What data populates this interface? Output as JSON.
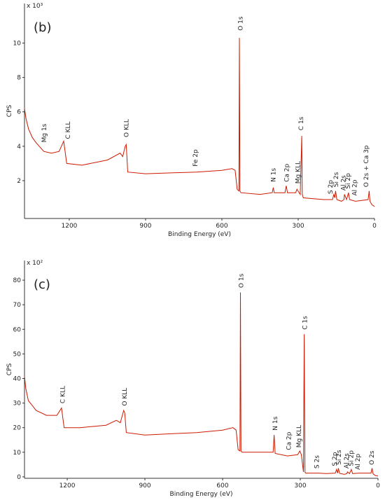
{
  "chart_data": [
    {
      "type": "line",
      "panel_label": "(b)",
      "y_scale_label": "x 10³",
      "xlabel": "Binding Energy (eV)",
      "ylabel": "CPS",
      "color": "#cc1a00",
      "xlim": [
        1376,
        0
      ],
      "xticks": [
        1200,
        900,
        600,
        300,
        0
      ],
      "ylim": [
        -0.2,
        12.3
      ],
      "yticks": [
        2,
        4,
        6,
        8,
        10
      ],
      "x": [
        1376,
        1370,
        1360,
        1345,
        1330,
        1300,
        1270,
        1240,
        1228,
        1222,
        1210,
        1150,
        1050,
        1000,
        990,
        980,
        976,
        970,
        900,
        700,
        600,
        560,
        548,
        540,
        533,
        531,
        529,
        525,
        450,
        402,
        398,
        394,
        352,
        347,
        342,
        310,
        305,
        292,
        286,
        284,
        280,
        200,
        165,
        160,
        156,
        153,
        148,
        130,
        120,
        118,
        110,
        102,
        98,
        75,
        25,
        21,
        18,
        10,
        0
      ],
      "values": [
        6.2,
        5.6,
        5.0,
        4.5,
        4.2,
        3.7,
        3.6,
        3.7,
        4.1,
        4.3,
        3.0,
        2.9,
        3.2,
        3.6,
        3.4,
        4.0,
        4.1,
        2.5,
        2.4,
        2.5,
        2.6,
        2.7,
        2.6,
        1.5,
        1.4,
        10.3,
        1.4,
        1.3,
        1.2,
        1.3,
        1.6,
        1.3,
        1.3,
        1.7,
        1.3,
        1.3,
        1.5,
        1.2,
        4.6,
        1.2,
        1.0,
        0.9,
        0.9,
        1.2,
        1.0,
        1.4,
        0.9,
        0.8,
        0.9,
        1.2,
        0.9,
        1.3,
        0.9,
        0.8,
        0.9,
        1.4,
        0.8,
        0.6,
        0.5
      ],
      "annotations": [
        {
          "text": "Mg 1s",
          "x": 1299,
          "y": 4.1
        },
        {
          "text": "C KLL",
          "x": 1205,
          "y": 4.3
        },
        {
          "text": "O KLL",
          "x": 975,
          "y": 4.4
        },
        {
          "text": "Fe 2p",
          "x": 705,
          "y": 2.7
        },
        {
          "text": "O 1s",
          "x": 527,
          "y": 10.6
        },
        {
          "text": "N 1s",
          "x": 398,
          "y": 1.8
        },
        {
          "text": "Ca 2p",
          "x": 345,
          "y": 1.8
        },
        {
          "text": "Mg KLL",
          "x": 302,
          "y": 1.7
        },
        {
          "text": "C 1s",
          "x": 289,
          "y": 4.8
        },
        {
          "text": "S 2p",
          "x": 174,
          "y": 1.1
        },
        {
          "text": "Si 2s",
          "x": 152,
          "y": 1.5
        },
        {
          "text": "Al 2s",
          "x": 122,
          "y": 1.3
        },
        {
          "text": "Si 2p",
          "x": 105,
          "y": 1.4
        },
        {
          "text": "Al 2p",
          "x": 78,
          "y": 1.0
        },
        {
          "text": "O 2s + Ca 3p",
          "x": 33,
          "y": 1.5
        }
      ]
    },
    {
      "type": "line",
      "panel_label": "(c)",
      "y_scale_label": "x 10²",
      "xlabel": "Binding Energy (eV)",
      "ylabel": "CPS",
      "color": "#cc1a00",
      "xlim": [
        1365,
        0
      ],
      "xticks": [
        1200,
        900,
        600,
        300,
        0
      ],
      "ylim": [
        -0.6,
        88
      ],
      "yticks": [
        0,
        10,
        20,
        30,
        40,
        50,
        60,
        70,
        80
      ],
      "x": [
        1365,
        1360,
        1350,
        1335,
        1320,
        1280,
        1240,
        1228,
        1222,
        1212,
        1150,
        1050,
        1010,
        995,
        982,
        978,
        972,
        900,
        700,
        600,
        560,
        548,
        540,
        533,
        531,
        529,
        525,
        450,
        405,
        401,
        397,
        350,
        310,
        302,
        296,
        288,
        285,
        282,
        280,
        230,
        200,
        165,
        160,
        156,
        153,
        148,
        130,
        120,
        118,
        110,
        103,
        98,
        75,
        27,
        23,
        19,
        10,
        0
      ],
      "values": [
        41,
        36,
        31,
        29,
        27,
        25,
        25,
        27,
        28,
        20,
        20,
        21,
        23,
        22,
        27,
        26,
        18,
        17,
        18,
        19,
        20,
        19,
        11,
        10.5,
        75,
        10.5,
        10,
        10,
        10,
        17,
        9.5,
        8.5,
        9,
        10.5,
        9,
        2,
        58,
        2,
        1.5,
        1.5,
        1.3,
        1.5,
        3,
        1.5,
        3.5,
        1.4,
        1,
        1.3,
        2,
        1.3,
        3,
        1.3,
        1.5,
        1.5,
        3.5,
        1.2,
        0.5,
        0.3
      ],
      "annotations": [
        {
          "text": "C KLL",
          "x": 1218,
          "y": 29
        },
        {
          "text": "O KLL",
          "x": 978,
          "y": 28
        },
        {
          "text": "O 1s",
          "x": 528,
          "y": 76
        },
        {
          "text": "N 1s",
          "x": 398,
          "y": 18
        },
        {
          "text": "Ca 2p",
          "x": 345,
          "y": 10
        },
        {
          "text": "Mg KLL",
          "x": 305,
          "y": 11
        },
        {
          "text": "C 1s",
          "x": 283,
          "y": 59
        },
        {
          "text": "S 2s",
          "x": 236,
          "y": 2.5
        },
        {
          "text": "S 2p",
          "x": 168,
          "y": 3.5
        },
        {
          "text": "Si 2s",
          "x": 152,
          "y": 4
        },
        {
          "text": "Al 2s",
          "x": 122,
          "y": 2.5
        },
        {
          "text": "Si 2p",
          "x": 104,
          "y": 3.5
        },
        {
          "text": "Al 2p",
          "x": 78,
          "y": 2
        },
        {
          "text": "O 2s",
          "x": 25,
          "y": 4
        }
      ]
    }
  ]
}
